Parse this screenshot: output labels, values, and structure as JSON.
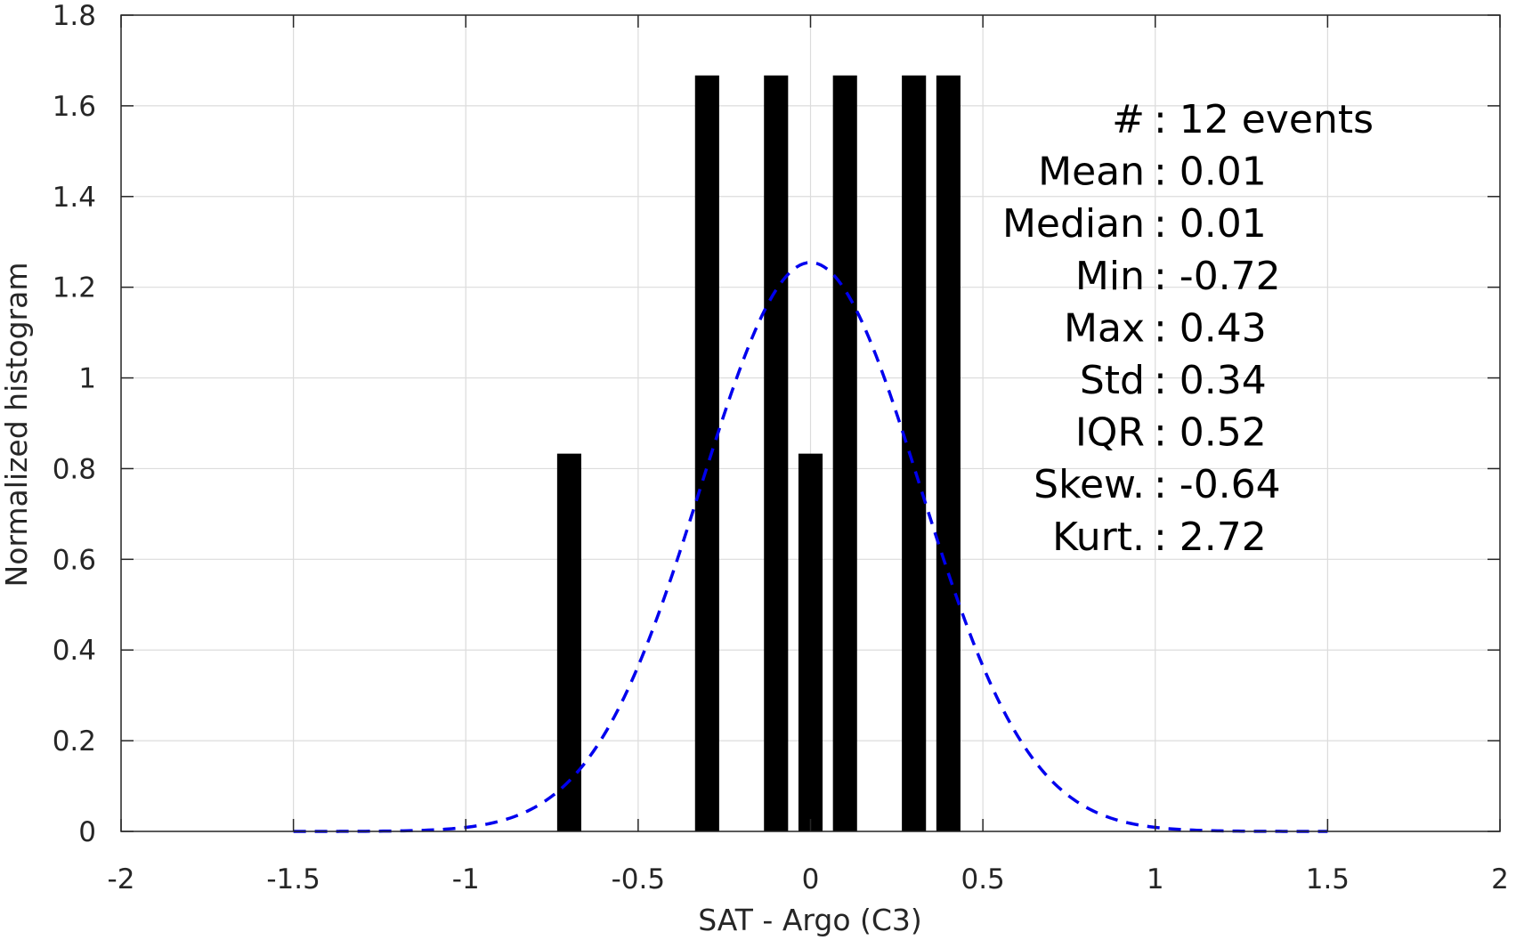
{
  "chart_data": {
    "type": "bar",
    "xlabel": "SAT - Argo (C3)",
    "ylabel": "Normalized histogram",
    "xlim": [
      -2,
      2
    ],
    "ylim": [
      0,
      1.8
    ],
    "xticks": [
      -2,
      -1.5,
      -1,
      -0.5,
      0,
      0.5,
      1,
      1.5,
      2
    ],
    "xtick_labels": [
      "-2",
      "-1.5",
      "-1",
      "-0.5",
      "0",
      "0.5",
      "1",
      "1.5",
      "2"
    ],
    "yticks": [
      0,
      0.2,
      0.4,
      0.6,
      0.8,
      1,
      1.2,
      1.4,
      1.6,
      1.8
    ],
    "ytick_labels": [
      "0",
      "0.2",
      "0.4",
      "0.6",
      "0.8",
      "1",
      "1.2",
      "1.4",
      "1.6",
      "1.8"
    ],
    "grid": true,
    "bar_width": 0.07,
    "bars": [
      {
        "x": -0.7,
        "value": 0.833
      },
      {
        "x": -0.3,
        "value": 1.667
      },
      {
        "x": -0.1,
        "value": 1.667
      },
      {
        "x": 0.0,
        "value": 0.833
      },
      {
        "x": 0.1,
        "value": 1.667
      },
      {
        "x": 0.3,
        "value": 1.667
      },
      {
        "x": 0.4,
        "value": 1.667
      }
    ],
    "bar_color": "#000000",
    "fit_curve": {
      "style": "dashed",
      "color": "#0000ee",
      "mean": 0.0,
      "std": 0.318,
      "x_range": [
        -1.5,
        1.5
      ]
    },
    "stats": [
      {
        "key": "#",
        "value": ": 12 events"
      },
      {
        "key": "Mean",
        "value": ": 0.01"
      },
      {
        "key": "Median",
        "value": ": 0.01"
      },
      {
        "key": "Min",
        "value": ": -0.72"
      },
      {
        "key": "Max",
        "value": ": 0.43"
      },
      {
        "key": "Std",
        "value": ": 0.34"
      },
      {
        "key": "IQR",
        "value": ": 0.52"
      },
      {
        "key": "Skew.",
        "value": ": -0.64"
      },
      {
        "key": "Kurt.",
        "value": ": 2.72"
      }
    ]
  }
}
